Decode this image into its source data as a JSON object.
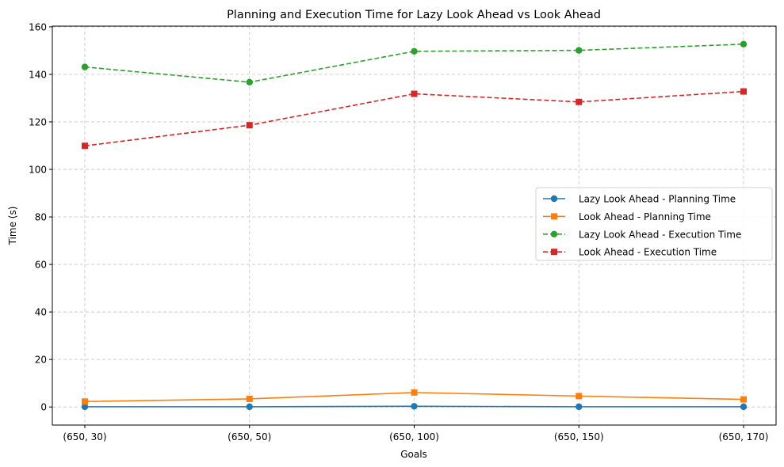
{
  "chart_data": {
    "type": "line",
    "title": "Planning and Execution Time for Lazy Look Ahead vs Look Ahead",
    "xlabel": "Goals",
    "ylabel": "Time (s)",
    "categories": [
      "(650, 30)",
      "(650, 50)",
      "(650, 100)",
      "(650, 150)",
      "(650, 170)"
    ],
    "ylim": [
      -7.6,
      160.3
    ],
    "yticks": [
      0,
      20,
      40,
      60,
      80,
      100,
      120,
      140,
      160
    ],
    "grid": true,
    "legend_position": "center-right",
    "series": [
      {
        "name": "Lazy Look Ahead - Planning Time",
        "values": [
          0.1,
          0.1,
          0.3,
          0.1,
          0.1
        ],
        "color": "#1f77b4",
        "linestyle": "solid",
        "marker": "circle"
      },
      {
        "name": "Look Ahead - Planning Time",
        "values": [
          2.3,
          3.4,
          6.1,
          4.6,
          3.2
        ],
        "color": "#ff7f0e",
        "linestyle": "solid",
        "marker": "square"
      },
      {
        "name": "Lazy Look Ahead - Execution Time",
        "values": [
          143.1,
          136.7,
          149.7,
          150.1,
          152.7
        ],
        "color": "#2ca02c",
        "linestyle": "dashed",
        "marker": "circle"
      },
      {
        "name": "Look Ahead - Execution Time",
        "values": [
          109.9,
          118.6,
          131.8,
          128.4,
          132.8
        ],
        "color": "#d62728",
        "linestyle": "dashed",
        "marker": "square"
      }
    ]
  }
}
